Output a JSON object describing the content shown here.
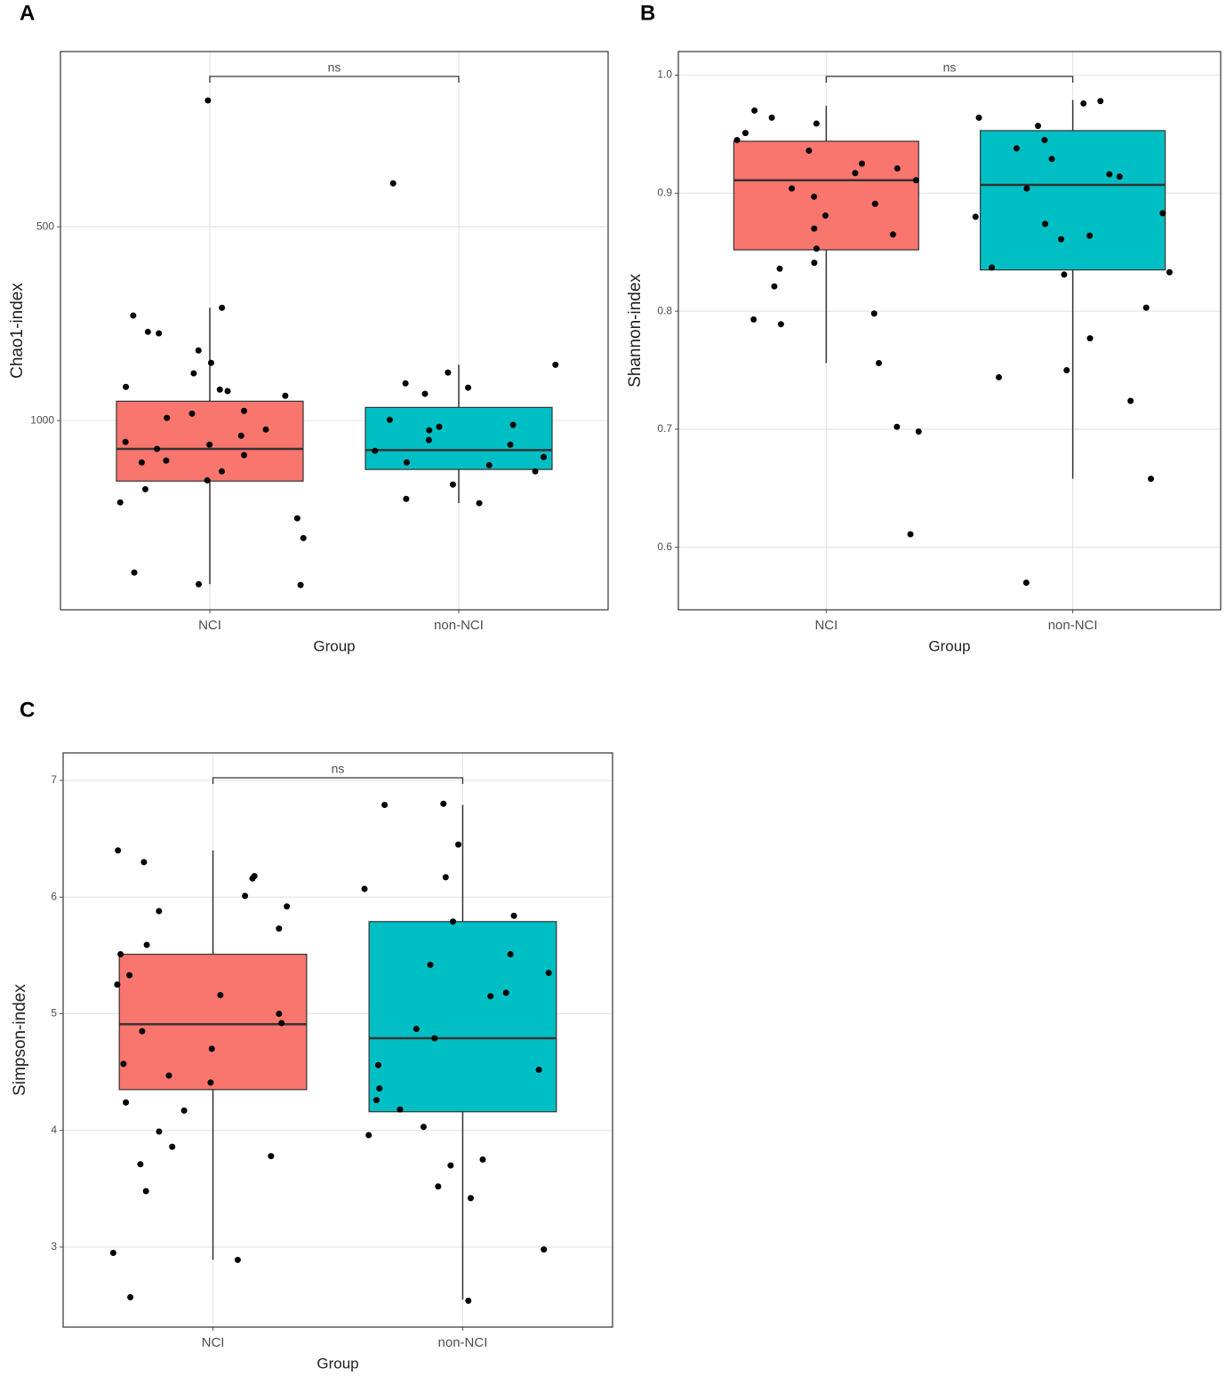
{
  "chart_data": [
    {
      "type": "box",
      "panel": "A",
      "annotation": "ns",
      "x_label": "Group",
      "y_label": "Chao1-index",
      "categories": [
        "NCI",
        "non-NCI"
      ],
      "ylim": [
        1488,
        48
      ],
      "yticks": [
        500,
        1000
      ],
      "grid": true,
      "groups": [
        {
          "color": "#f8766d",
          "min": 709,
          "q1": 950,
          "median": 1073,
          "q3": 1156,
          "max": 1422,
          "points": [
            174,
            709,
            729,
            775,
            819,
            851,
            913,
            936,
            924,
            982,
            993,
            1023,
            1039,
            1055,
            1062,
            1073,
            1089,
            1108,
            1131,
            1154,
            1177,
            1211,
            1252,
            1303,
            1392,
            1422,
            1424,
            771,
            878,
            920,
            975,
            1103
          ]
        },
        {
          "color": "#00bfc4",
          "min": 856,
          "q1": 966,
          "median": 1076,
          "q3": 1126,
          "max": 1213,
          "points": [
            388,
            856,
            876,
            904,
            915,
            931,
            998,
            1011,
            1025,
            1050,
            1078,
            1094,
            1108,
            1131,
            1165,
            1202,
            1213,
            1016,
            1062,
            1115
          ]
        }
      ]
    },
    {
      "type": "box",
      "panel": "B",
      "annotation": "ns",
      "x_label": "Group",
      "y_label": "Shannon-index",
      "categories": [
        "NCI",
        "non-NCI"
      ],
      "ylim": [
        0.547,
        1.02
      ],
      "yticks": [
        0.6,
        0.7,
        0.8,
        0.9,
        {
          "value": 1,
          "label": "1.0"
        }
      ],
      "grid": true,
      "groups": [
        {
          "color": "#f8766d",
          "min": 0.756,
          "q1": 0.852,
          "median": 0.911,
          "q3": 0.944,
          "max": 0.974,
          "points": [
            0.97,
            0.964,
            0.959,
            0.951,
            0.945,
            0.936,
            0.925,
            0.917,
            0.911,
            0.904,
            0.897,
            0.881,
            0.87,
            0.865,
            0.853,
            0.841,
            0.836,
            0.821,
            0.798,
            0.793,
            0.789,
            0.756,
            0.702,
            0.698,
            0.611,
            0.921,
            0.891
          ]
        },
        {
          "color": "#00bfc4",
          "min": 0.658,
          "q1": 0.835,
          "median": 0.907,
          "q3": 0.953,
          "max": 0.979,
          "points": [
            0.978,
            0.976,
            0.964,
            0.957,
            0.945,
            0.938,
            0.929,
            0.916,
            0.914,
            0.904,
            0.883,
            0.88,
            0.874,
            0.864,
            0.861,
            0.837,
            0.833,
            0.831,
            0.803,
            0.777,
            0.75,
            0.744,
            0.724,
            0.658,
            0.57
          ]
        }
      ]
    },
    {
      "type": "box",
      "panel": "C",
      "annotation": "ns",
      "x_label": "Group",
      "y_label": "Simpson-index",
      "categories": [
        "NCI",
        "non-NCI"
      ],
      "ylim": [
        2.314,
        7.236
      ],
      "yticks": [
        3,
        4,
        5,
        6,
        7
      ],
      "grid": true,
      "groups": [
        {
          "color": "#f8766d",
          "min": 2.89,
          "q1": 4.35,
          "median": 4.91,
          "q3": 5.51,
          "max": 6.4,
          "points": [
            6.4,
            6.3,
            6.18,
            6.16,
            6.01,
            5.92,
            5.88,
            5.73,
            5.59,
            5.51,
            5.33,
            5.25,
            5.16,
            5.0,
            4.92,
            4.85,
            4.7,
            4.57,
            4.47,
            4.41,
            4.24,
            4.17,
            3.99,
            3.86,
            3.78,
            3.71,
            3.48,
            2.95,
            2.89,
            2.57
          ]
        },
        {
          "color": "#00bfc4",
          "min": 2.55,
          "q1": 4.16,
          "median": 4.79,
          "q3": 5.79,
          "max": 6.79,
          "points": [
            6.8,
            6.79,
            6.45,
            6.17,
            6.07,
            5.84,
            5.79,
            5.51,
            5.42,
            5.35,
            5.18,
            5.15,
            4.87,
            4.79,
            4.56,
            4.52,
            4.36,
            4.26,
            4.18,
            4.03,
            3.96,
            3.75,
            3.7,
            3.52,
            3.42,
            2.98,
            2.54
          ]
        }
      ]
    }
  ]
}
